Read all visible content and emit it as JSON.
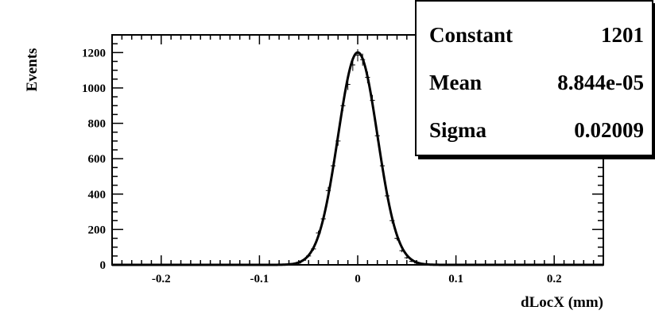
{
  "chart_data": {
    "type": "histogram",
    "xlabel": "dLocX (mm)",
    "ylabel": "Events",
    "xlim": [
      -0.25,
      0.25
    ],
    "ylim": [
      0,
      1300
    ],
    "x_ticks": [
      -0.2,
      -0.1,
      0,
      0.1,
      0.2
    ],
    "x_tick_labels": [
      "-0.2",
      "-0.1",
      "0",
      "0.1",
      "0.2"
    ],
    "y_ticks": [
      0,
      200,
      400,
      600,
      800,
      1000,
      1200
    ],
    "y_tick_labels": [
      "0",
      "200",
      "400",
      "600",
      "800",
      "1000",
      "1200"
    ],
    "bin_width": 0.005,
    "bins": {
      "x": [
        -0.065,
        -0.06,
        -0.055,
        -0.05,
        -0.045,
        -0.04,
        -0.035,
        -0.03,
        -0.025,
        -0.02,
        -0.015,
        -0.01,
        -0.005,
        0.0,
        0.005,
        0.01,
        0.015,
        0.02,
        0.025,
        0.03,
        0.035,
        0.04,
        0.045,
        0.05,
        0.055,
        0.06,
        0.065
      ],
      "y": [
        6,
        10,
        26,
        50,
        90,
        180,
        260,
        420,
        560,
        700,
        900,
        1020,
        1130,
        1185,
        1160,
        1060,
        930,
        730,
        560,
        390,
        250,
        150,
        80,
        40,
        20,
        10,
        4
      ]
    },
    "fit": {
      "function": "gaussian",
      "constant": 1201,
      "mean": 8.844e-05,
      "sigma": 0.02009
    },
    "stats": [
      {
        "name": "Constant",
        "value": "1201"
      },
      {
        "name": "Mean",
        "value": "8.844e-05"
      },
      {
        "name": "Sigma",
        "value": "0.02009"
      }
    ]
  }
}
